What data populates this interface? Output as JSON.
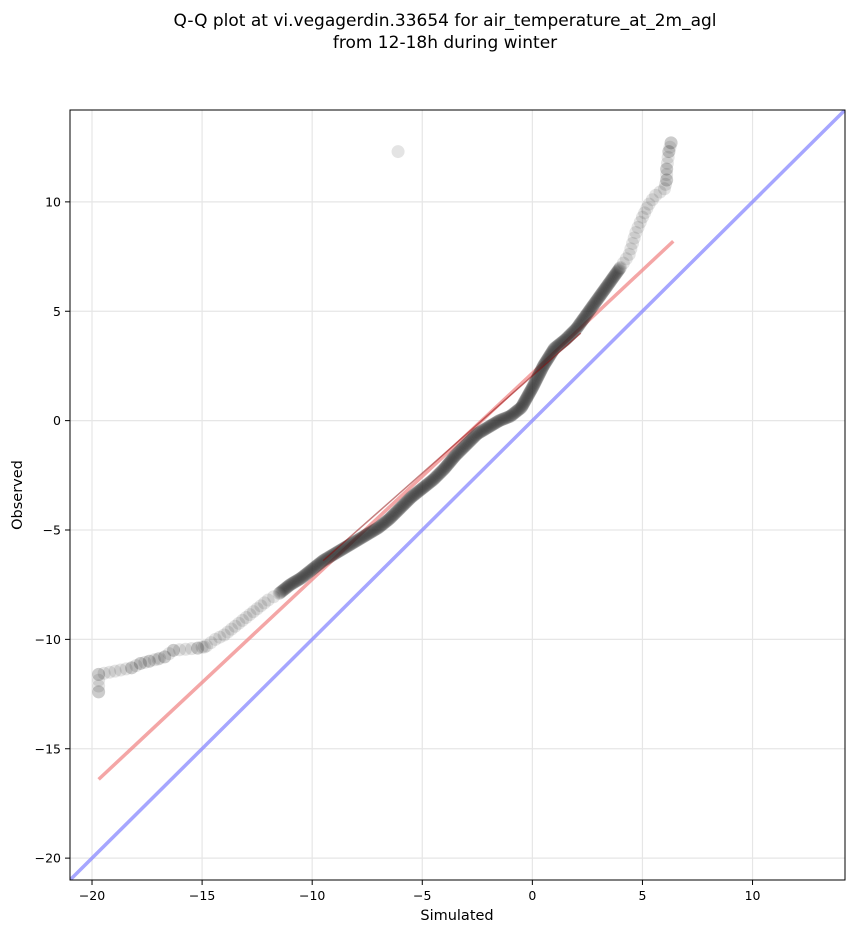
{
  "chart_data": {
    "type": "scatter",
    "title": [
      "Q-Q plot at vi.vegagerdin.33654 for air_temperature_at_2m_agl",
      "from 12-18h during winter"
    ],
    "xlabel": "Simulated",
    "ylabel": "Observed",
    "xlim": [
      -21,
      14.2
    ],
    "ylim": [
      -21,
      14.2
    ],
    "xticks": [
      -20,
      -15,
      -10,
      -5,
      0,
      5,
      10
    ],
    "yticks": [
      -20,
      -15,
      -10,
      -5,
      0,
      5,
      10
    ],
    "grid": true,
    "colors": {
      "points": "#222222",
      "fit_line": "#f08080",
      "identity_line": "#8080ff",
      "dense_line": "#8b0000"
    },
    "quantile_curve": [
      [
        -19.7,
        -12.4
      ],
      [
        -19.7,
        -11.6
      ],
      [
        -18.2,
        -11.3
      ],
      [
        -17.8,
        -11.1
      ],
      [
        -17.4,
        -11.0
      ],
      [
        -16.7,
        -10.8
      ],
      [
        -16.3,
        -10.5
      ],
      [
        -15.2,
        -10.4
      ],
      [
        -14.8,
        -10.3
      ],
      [
        -14.4,
        -10.0
      ],
      [
        -14.0,
        -9.8
      ],
      [
        -13.5,
        -9.4
      ],
      [
        -13.0,
        -9.0
      ],
      [
        -12.5,
        -8.6
      ],
      [
        -12.0,
        -8.2
      ],
      [
        -11.5,
        -7.9
      ],
      [
        -11.0,
        -7.5
      ],
      [
        -10.5,
        -7.2
      ],
      [
        -10.0,
        -6.8
      ],
      [
        -9.5,
        -6.4
      ],
      [
        -9.0,
        -6.1
      ],
      [
        -8.5,
        -5.8
      ],
      [
        -8.0,
        -5.5
      ],
      [
        -7.5,
        -5.2
      ],
      [
        -7.0,
        -4.9
      ],
      [
        -6.5,
        -4.5
      ],
      [
        -6.0,
        -4.0
      ],
      [
        -5.5,
        -3.5
      ],
      [
        -5.0,
        -3.1
      ],
      [
        -4.5,
        -2.7
      ],
      [
        -4.0,
        -2.2
      ],
      [
        -3.5,
        -1.6
      ],
      [
        -3.0,
        -1.1
      ],
      [
        -2.5,
        -0.6
      ],
      [
        -2.0,
        -0.3
      ],
      [
        -1.5,
        0.0
      ],
      [
        -1.0,
        0.2
      ],
      [
        -0.5,
        0.6
      ],
      [
        0.0,
        1.5
      ],
      [
        0.5,
        2.5
      ],
      [
        1.0,
        3.3
      ],
      [
        1.5,
        3.7
      ],
      [
        2.0,
        4.2
      ],
      [
        2.5,
        4.9
      ],
      [
        3.0,
        5.6
      ],
      [
        3.5,
        6.3
      ],
      [
        4.0,
        7.0
      ],
      [
        4.4,
        7.6
      ],
      [
        4.7,
        8.6
      ],
      [
        5.0,
        9.3
      ],
      [
        5.3,
        9.9
      ],
      [
        5.6,
        10.3
      ],
      [
        6.0,
        10.6
      ],
      [
        6.1,
        11.0
      ],
      [
        6.1,
        11.5
      ],
      [
        6.2,
        12.3
      ],
      [
        6.3,
        12.7
      ]
    ],
    "sparse_points": [
      [
        -19.7,
        -12.4
      ],
      [
        -19.7,
        -11.6
      ],
      [
        -18.2,
        -11.3
      ],
      [
        -17.8,
        -11.1
      ],
      [
        -17.4,
        -11.0
      ],
      [
        -17.0,
        -10.9
      ],
      [
        -16.7,
        -10.8
      ],
      [
        -16.3,
        -10.5
      ],
      [
        -15.2,
        -10.4
      ],
      [
        -14.9,
        -10.35
      ],
      [
        -6.1,
        12.3
      ],
      [
        6.2,
        12.3
      ],
      [
        6.3,
        12.7
      ],
      [
        6.1,
        11.5
      ],
      [
        6.1,
        11.0
      ]
    ],
    "fit_line": {
      "x": [
        -19.7,
        6.4
      ],
      "y": [
        -16.4,
        8.2
      ]
    },
    "identity_line": {
      "x": [
        -21,
        14.2
      ],
      "y": [
        -21,
        14.2
      ]
    }
  }
}
